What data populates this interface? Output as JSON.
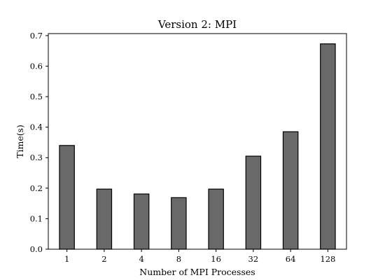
{
  "chart_data": {
    "type": "bar",
    "title": "Version 2: MPI",
    "xlabel": "Number of MPI Processes",
    "ylabel": "Time(s)",
    "categories": [
      "1",
      "2",
      "4",
      "8",
      "16",
      "32",
      "64",
      "128"
    ],
    "values": [
      0.34,
      0.197,
      0.181,
      0.169,
      0.197,
      0.305,
      0.385,
      0.673
    ],
    "ylim": [
      0,
      0.7
    ],
    "yticks": [
      "0.0",
      "0.1",
      "0.2",
      "0.3",
      "0.4",
      "0.5",
      "0.6",
      "0.7"
    ],
    "bar_color": "#696969",
    "grid": false
  }
}
